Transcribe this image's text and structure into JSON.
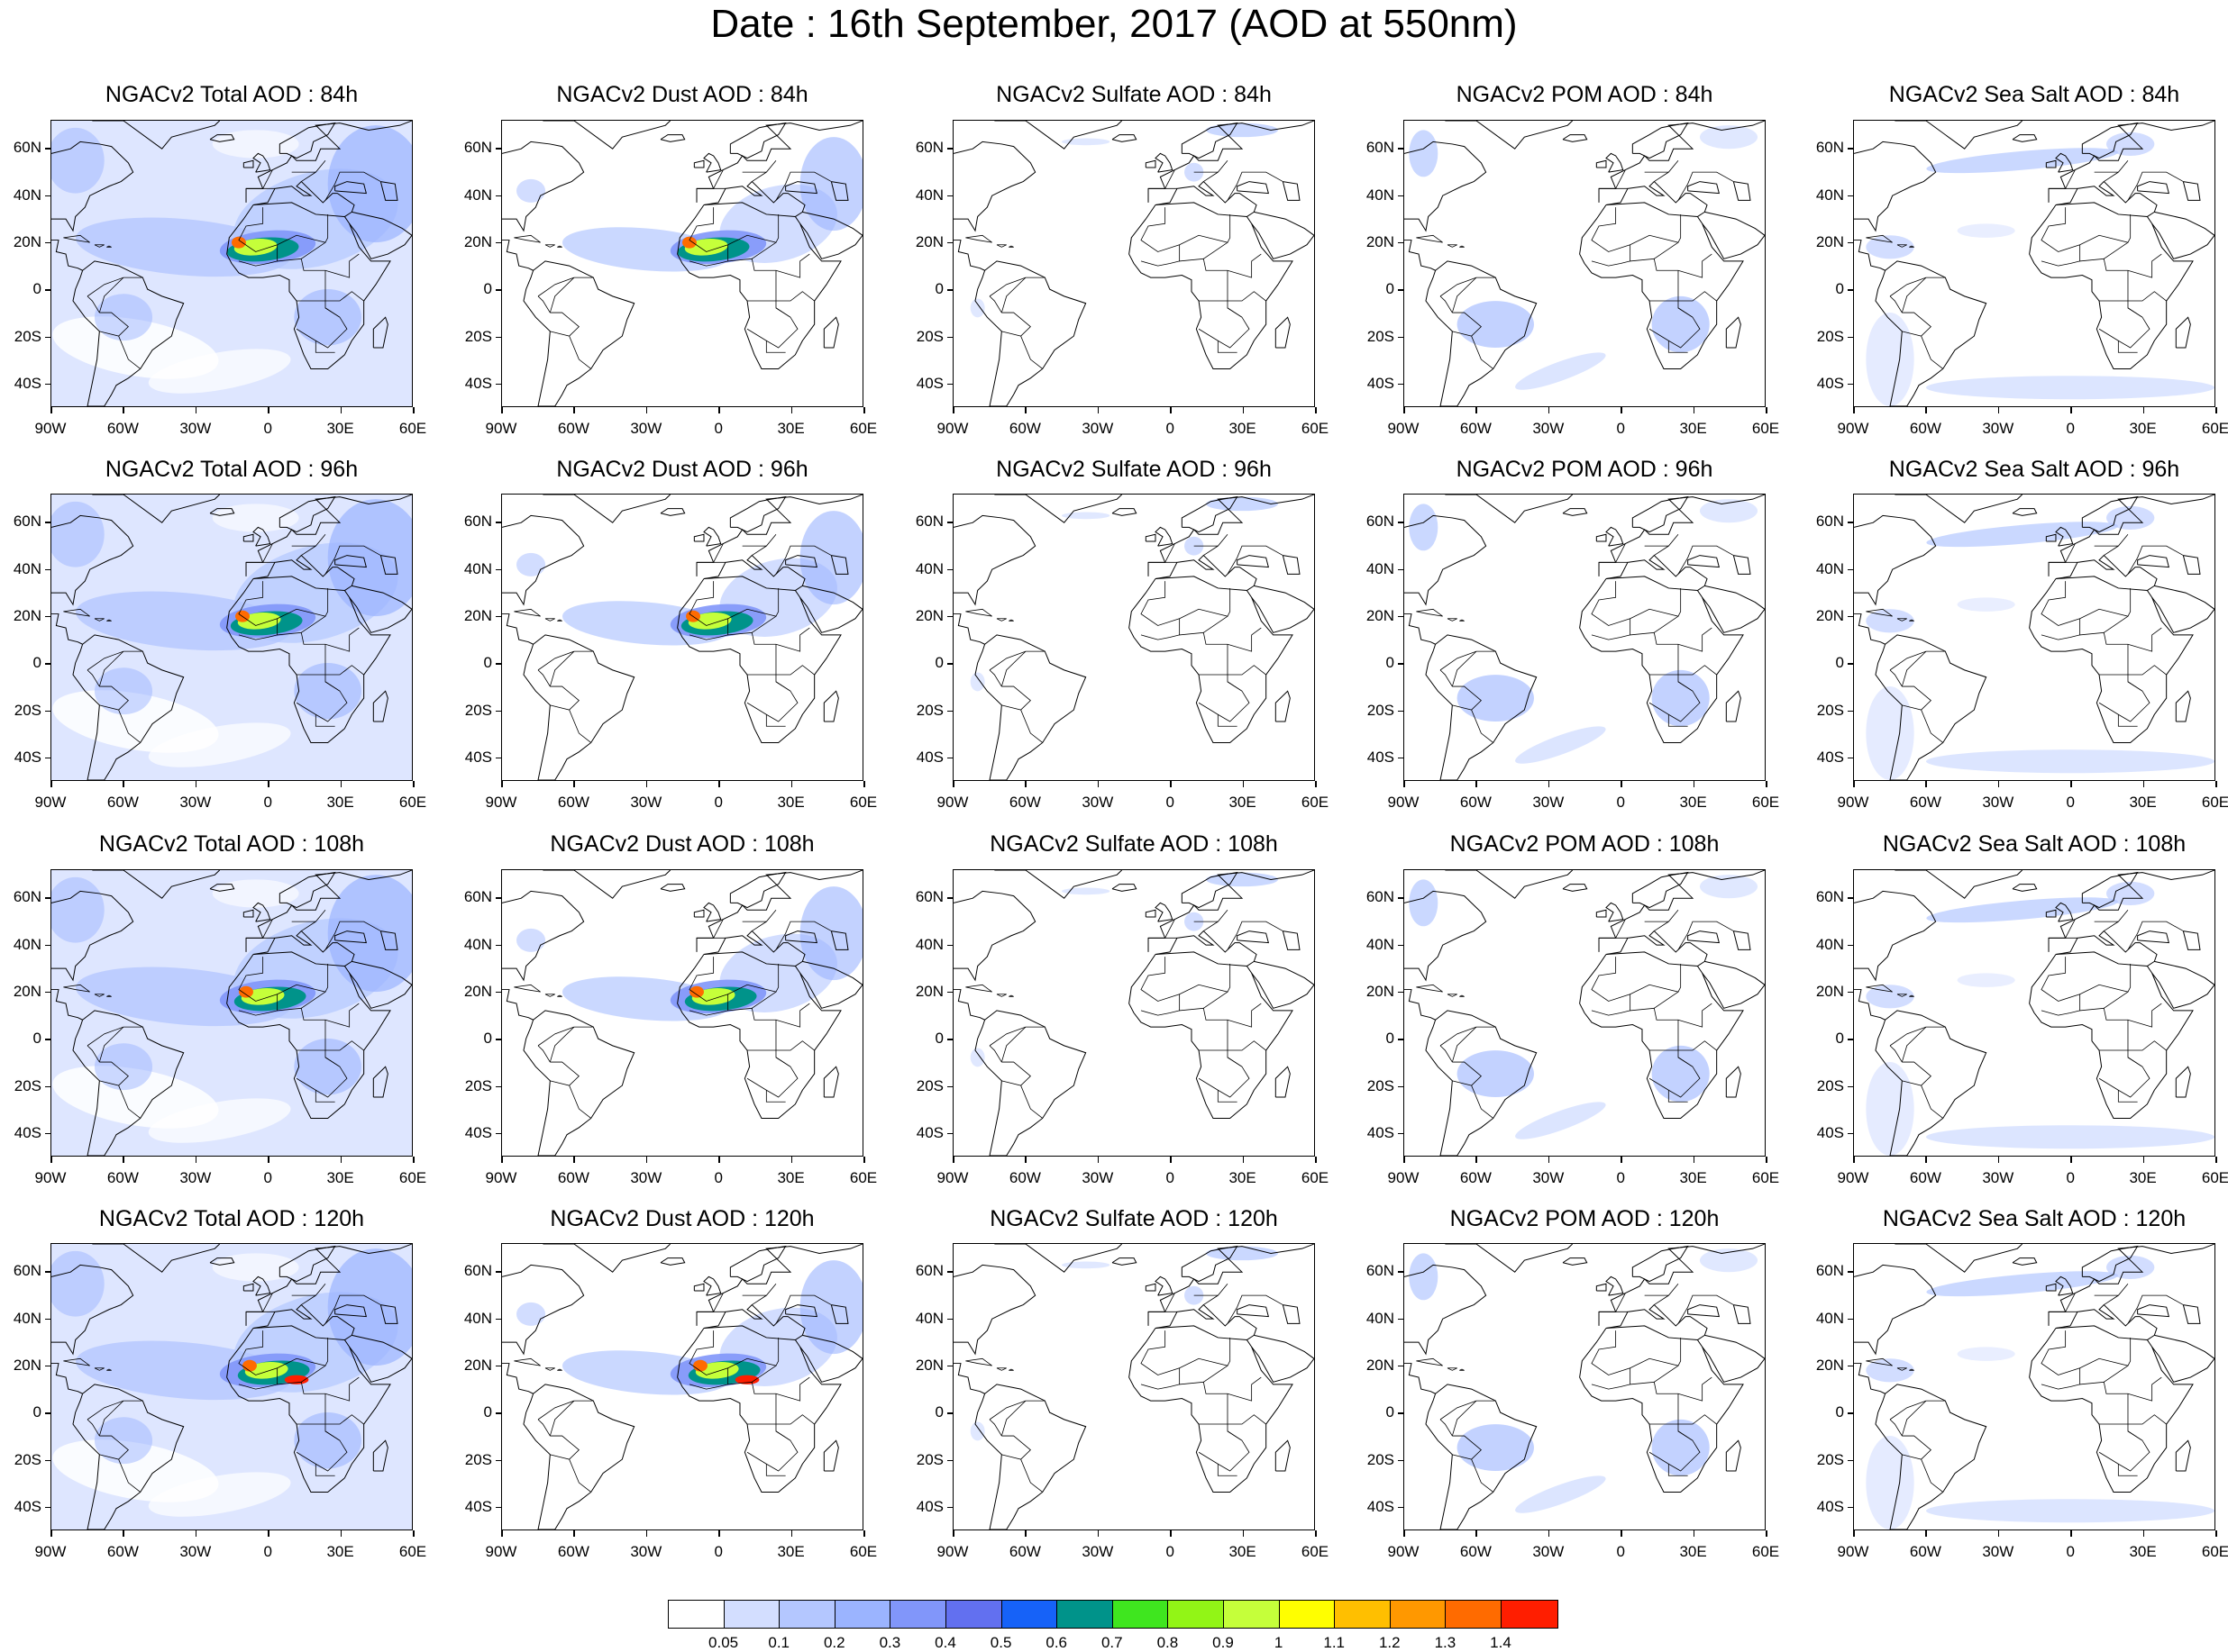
{
  "title": "Date : 16th September, 2017 (AOD at 550nm)",
  "rows": [
    {
      "hour": "84h",
      "panels": [
        "NGACv2 Total AOD : 84h",
        "NGACv2 Dust AOD : 84h",
        "NGACv2 Sulfate AOD : 84h",
        "NGACv2 POM AOD : 84h",
        "NGACv2 Sea Salt AOD : 84h"
      ]
    },
    {
      "hour": "96h",
      "panels": [
        "NGACv2 Total AOD : 96h",
        "NGACv2 Dust AOD : 96h",
        "NGACv2 Sulfate AOD : 96h",
        "NGACv2 POM AOD : 96h",
        "NGACv2 Sea Salt AOD : 96h"
      ]
    },
    {
      "hour": "108h",
      "panels": [
        "NGACv2 Total AOD : 108h",
        "NGACv2 Dust AOD : 108h",
        "NGACv2 Sulfate AOD : 108h",
        "NGACv2 POM AOD : 108h",
        "NGACv2 Sea Salt AOD : 108h"
      ]
    },
    {
      "hour": "120h",
      "panels": [
        "NGACv2 Total AOD : 120h",
        "NGACv2 Dust AOD : 120h",
        "NGACv2 Sulfate AOD : 120h",
        "NGACv2 POM AOD : 120h",
        "NGACv2 Sea Salt  AOD : 120h"
      ]
    }
  ],
  "species": [
    "total",
    "dust",
    "sulfate",
    "pom",
    "seasalt"
  ],
  "lat_ticks": [
    "60N",
    "40N",
    "20N",
    "0",
    "20S",
    "40S"
  ],
  "lon_ticks": [
    "90W",
    "60W",
    "30W",
    "0",
    "30E",
    "60E"
  ],
  "colorbar": {
    "labels": [
      "0.05",
      "0.1",
      "0.2",
      "0.3",
      "0.4",
      "0.5",
      "0.6",
      "0.7",
      "0.8",
      "0.9",
      "1",
      "1.1",
      "1.2",
      "1.3",
      "1.4"
    ],
    "colors": [
      "#ffffff",
      "#d3deff",
      "#b4c7ff",
      "#9bb4ff",
      "#8196fa",
      "#6270f0",
      "#1662f8",
      "#00938a",
      "#3fe61f",
      "#92f516",
      "#c5ff3a",
      "#ffff00",
      "#ffbf00",
      "#ff9800",
      "#ff6b00",
      "#ff1e00"
    ]
  },
  "colors": {
    "land_line": "#000000",
    "light_aod": "#c7d4ff",
    "mid_aod": "#9fb2ff",
    "high_aod": "#7f93f5"
  }
}
